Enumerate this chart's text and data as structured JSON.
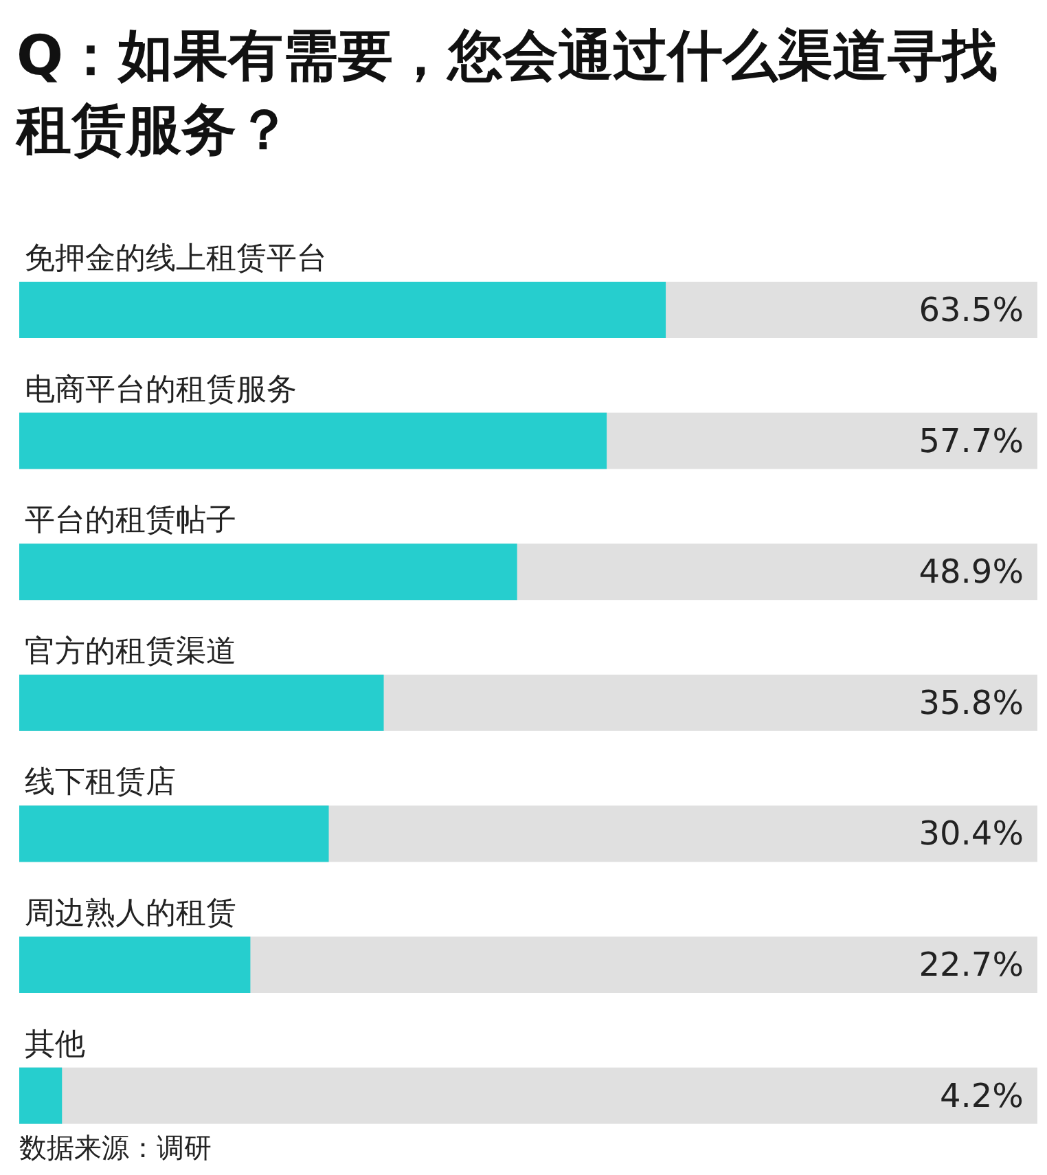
{
  "chart_data": {
    "type": "bar",
    "orientation": "horizontal",
    "title": "Q：如果有需要，您会通过什么渠道寻找租赁服务？",
    "categories": [
      "免押金的线上租赁平台",
      "电商平台的租赁服务",
      "平台的租赁帖子",
      "官方的租赁渠道",
      "线下租赁店",
      "周边熟人的租赁",
      "其他"
    ],
    "values": [
      63.5,
      57.7,
      48.9,
      35.8,
      30.4,
      22.7,
      4.2
    ],
    "value_labels": [
      "63.5%",
      "57.7%",
      "48.9%",
      "35.8%",
      "30.4%",
      "22.7%",
      "4.2%"
    ],
    "color": "#26cece",
    "xlim": [
      0,
      100
    ],
    "bands": [
      {
        "axis": "x",
        "from": 0,
        "to": 100,
        "color": "#e0e0e0"
      }
    ],
    "annotations": [
      "数据来源：调研"
    ]
  }
}
